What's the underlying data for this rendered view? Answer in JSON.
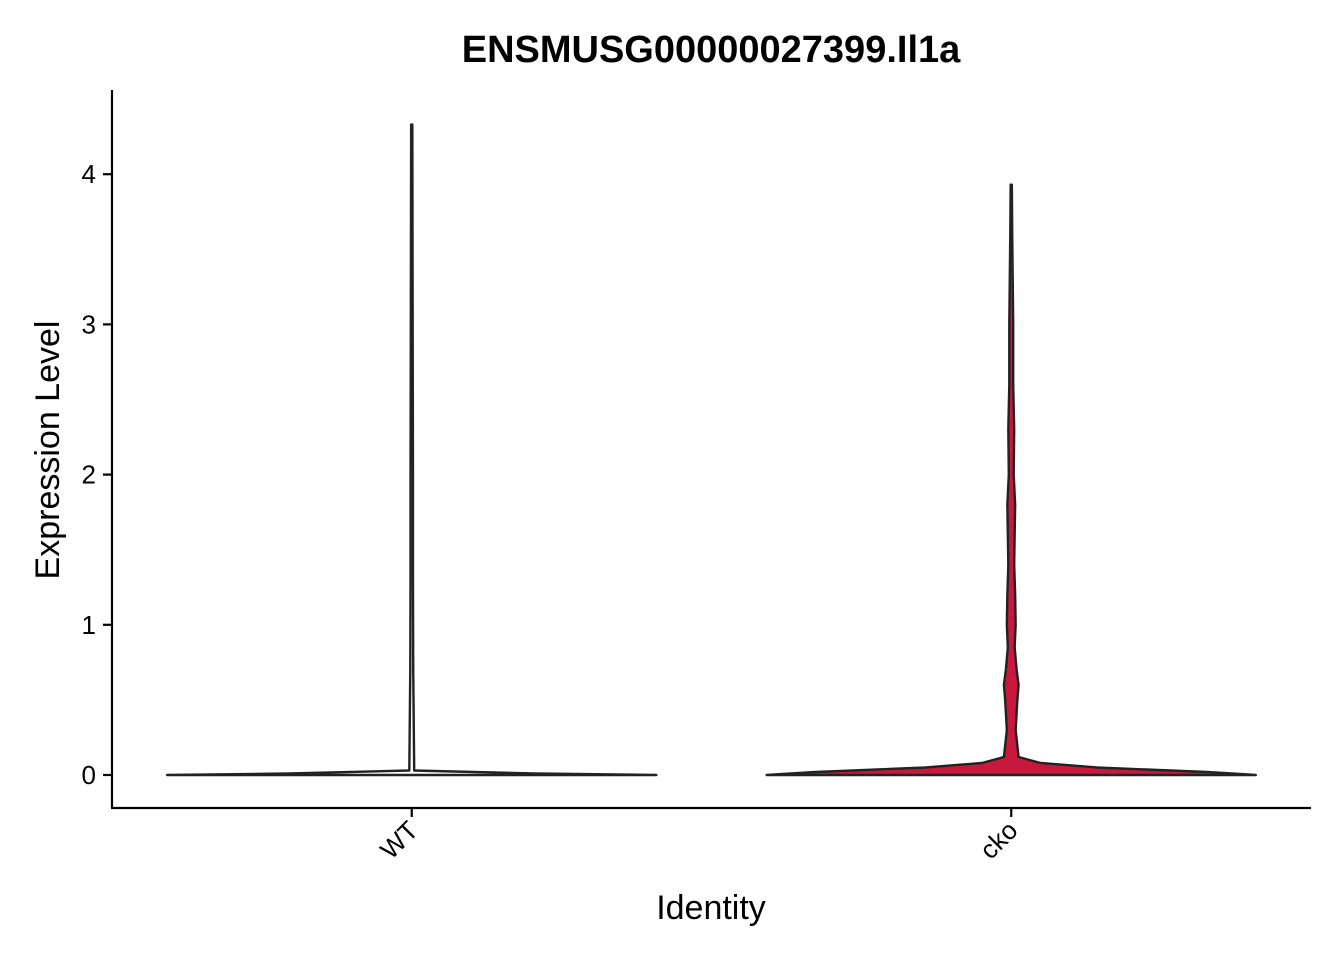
{
  "chart_data": {
    "type": "violin",
    "title": "ENSMUSG00000027399.Il1a",
    "xlabel": "Identity",
    "ylabel": "Expression Level",
    "categories": [
      "WT",
      "cko"
    ],
    "y_ticks": [
      0,
      1,
      2,
      3,
      4
    ],
    "ylim": [
      -0.22,
      4.55
    ],
    "grid": false,
    "legend": "none",
    "series": [
      {
        "category": "WT",
        "color": "#FFFFFF",
        "max": 4.33,
        "min": 0,
        "density_profile": [
          {
            "y": 0.0,
            "w": 1.0
          },
          {
            "y": 0.01,
            "w": 0.5
          },
          {
            "y": 0.03,
            "w": 0.01
          },
          {
            "y": 0.7,
            "w": 0.006
          },
          {
            "y": 1.3,
            "w": 0.005
          },
          {
            "y": 2.0,
            "w": 0.005
          },
          {
            "y": 2.8,
            "w": 0.004
          },
          {
            "y": 4.33,
            "w": 0.002
          }
        ]
      },
      {
        "category": "cko",
        "color": "#C8193C",
        "max": 3.93,
        "min": 0,
        "density_profile": [
          {
            "y": 0.0,
            "w": 1.0
          },
          {
            "y": 0.02,
            "w": 0.8
          },
          {
            "y": 0.05,
            "w": 0.35
          },
          {
            "y": 0.08,
            "w": 0.12
          },
          {
            "y": 0.12,
            "w": 0.03
          },
          {
            "y": 0.3,
            "w": 0.018
          },
          {
            "y": 0.5,
            "w": 0.025
          },
          {
            "y": 0.6,
            "w": 0.03
          },
          {
            "y": 0.7,
            "w": 0.022
          },
          {
            "y": 0.85,
            "w": 0.014
          },
          {
            "y": 1.0,
            "w": 0.018
          },
          {
            "y": 1.2,
            "w": 0.016
          },
          {
            "y": 1.4,
            "w": 0.012
          },
          {
            "y": 1.6,
            "w": 0.014
          },
          {
            "y": 1.8,
            "w": 0.016
          },
          {
            "y": 2.0,
            "w": 0.01
          },
          {
            "y": 2.3,
            "w": 0.012
          },
          {
            "y": 2.6,
            "w": 0.008
          },
          {
            "y": 3.0,
            "w": 0.008
          },
          {
            "y": 3.3,
            "w": 0.006
          },
          {
            "y": 3.6,
            "w": 0.004
          },
          {
            "y": 3.93,
            "w": 0.002
          }
        ]
      }
    ]
  }
}
